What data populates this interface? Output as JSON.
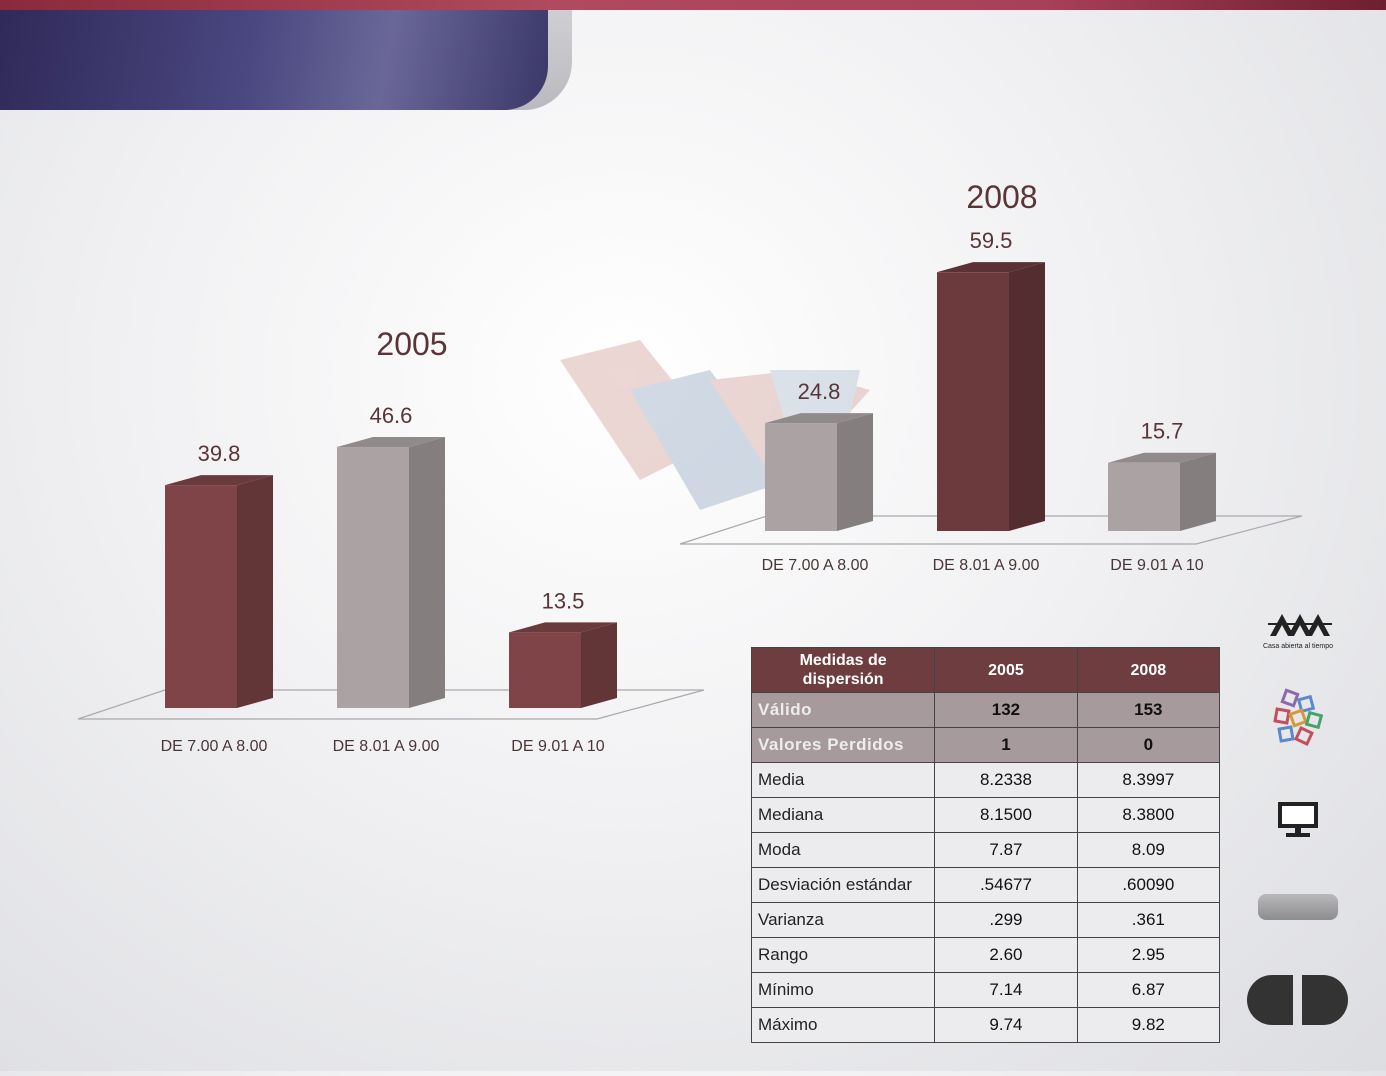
{
  "chart_data": [
    {
      "type": "bar",
      "title": "2005",
      "categories": [
        "DE 7.00 A 8.00",
        "DE 8.01 A 9.00",
        "DE 9.01 A 10"
      ],
      "values": [
        39.8,
        46.6,
        13.5
      ],
      "data_labels": [
        "39.8",
        "46.6",
        "13.5"
      ],
      "bar_colors": [
        "#7e4447",
        "#aba2a3",
        "#7e4447"
      ],
      "ylim": [
        0,
        60
      ]
    },
    {
      "type": "bar",
      "title": "2008",
      "categories": [
        "DE 7.00 A 8.00",
        "DE 8.01 A 9.00",
        "DE 9.01 A 10"
      ],
      "values": [
        24.8,
        59.5,
        15.7
      ],
      "data_labels": [
        "24.8",
        "59.5",
        "15.7"
      ],
      "bar_colors": [
        "#aba2a3",
        "#6b3a3c",
        "#aba2a3"
      ],
      "ylim": [
        0,
        60
      ]
    }
  ],
  "table": {
    "header": {
      "measure": "Medidas de dispersión",
      "col1": "2005",
      "col2": "2008"
    },
    "rows": [
      {
        "label": "Válido",
        "v2005": "132",
        "v2008": "153",
        "style": "shade"
      },
      {
        "label": "Valores Perdidos",
        "v2005": "1",
        "v2008": "0",
        "style": "shade"
      },
      {
        "label": "Media",
        "v2005": "8.2338",
        "v2008": "8.3997",
        "style": "plain"
      },
      {
        "label": "Mediana",
        "v2005": "8.1500",
        "v2008": "8.3800",
        "style": "plain"
      },
      {
        "label": "Moda",
        "v2005": "7.87",
        "v2008": "8.09",
        "style": "plain"
      },
      {
        "label": "Desviación estándar",
        "v2005": ".54677",
        "v2008": ".60090",
        "style": "plain"
      },
      {
        "label": "Varianza",
        "v2005": ".299",
        "v2008": ".361",
        "style": "plain"
      },
      {
        "label": "Rango",
        "v2005": "2.60",
        "v2008": "2.95",
        "style": "plain"
      },
      {
        "label": "Mínimo",
        "v2005": "7.14",
        "v2008": "6.87",
        "style": "plain"
      },
      {
        "label": "Máximo",
        "v2005": "9.74",
        "v2008": "9.82",
        "style": "plain"
      }
    ]
  },
  "sidebar": {
    "logo_caption": "Casa abierta al tiempo",
    "icons": [
      "uam-logo-icon",
      "colored-squares-icon",
      "monitor-icon",
      "grey-tab-icon"
    ]
  },
  "colors": {
    "banner": "#3d3a6c",
    "top_bar": "#a94059",
    "table_header": "#6e3d3f"
  }
}
